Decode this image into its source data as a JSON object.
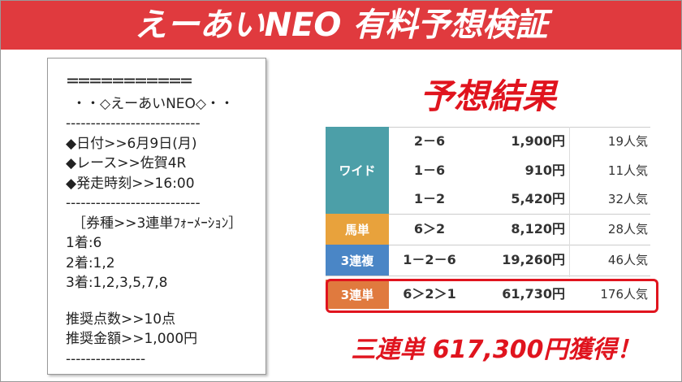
{
  "header": {
    "title": "えーあいNEO 有料予想検証"
  },
  "card": {
    "lines": [
      "＝＝＝＝＝＝＝＝＝＝＝",
      "・・◇えーあいNEO◇・・",
      "---------------------------",
      "◆日付>>6月9日(月)",
      "◆レース>>佐賀4R",
      "◆発走時刻>>16:00",
      "---------------------------",
      "［券種>>3連単ﾌｫｰﾒｰｼｮﾝ］",
      "1着:6",
      "2着:1,2",
      "3着:1,2,3,5,7,8",
      "推奨点数>>10点",
      "推奨金額>>1,000円",
      "----------------"
    ]
  },
  "results": {
    "title": "予想結果",
    "rows": [
      {
        "type": "ワイド",
        "entries": [
          [
            "2－6",
            "1,900円",
            "19人気"
          ],
          [
            "1－6",
            "910円",
            "11人気"
          ],
          [
            "1－2",
            "5,420円",
            "32人気"
          ]
        ]
      },
      {
        "type": "馬単",
        "entries": [
          [
            "6＞2",
            "8,120円",
            "28人気"
          ]
        ]
      },
      {
        "type": "3連複",
        "entries": [
          [
            "1－2－6",
            "19,260円",
            "46人気"
          ]
        ]
      },
      {
        "type": "3連単",
        "entries": [
          [
            "6＞2＞1",
            "61,730円",
            "176人気"
          ]
        ]
      }
    ],
    "summary": "三連単 617,300円獲得！"
  }
}
